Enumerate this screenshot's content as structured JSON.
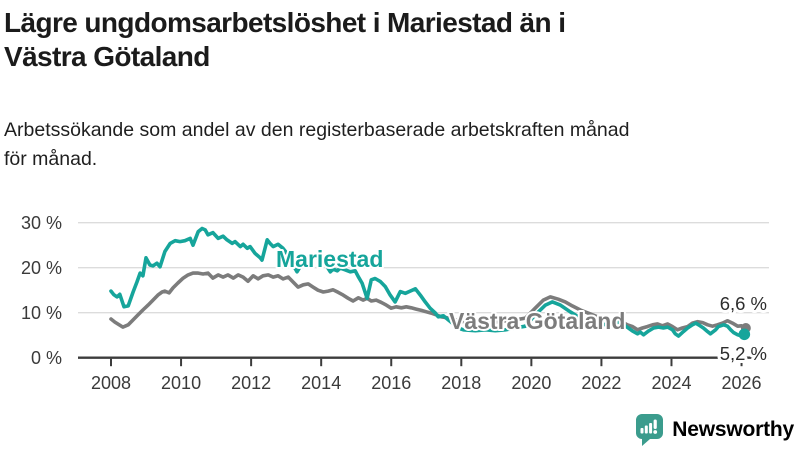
{
  "header": {
    "title_lines": [
      "Lägre ungdomsarbetslöshet i Mariestad än i",
      "Västra Götaland"
    ],
    "subtitle_lines": [
      "Arbetssökande som andel av den registerbaserade arbetskraften månad",
      "för månad."
    ]
  },
  "chart_data": {
    "type": "line",
    "title": "Lägre ungdomsarbetslöshet i Mariestad än i Västra Götaland",
    "subtitle": "Arbetssökande som andel av den registerbaserade arbetskraften månad för månad.",
    "grid": "horizontal",
    "grid_color": "#dcdcdc",
    "axis_color": "#3c3c3c",
    "tick_label_color": "#3a3a3a",
    "x_axis": {
      "ticks": [
        2008,
        2010,
        2012,
        2014,
        2016,
        2018,
        2020,
        2022,
        2024,
        2026
      ],
      "labels": [
        "2008",
        "2010",
        "2012",
        "2014",
        "2016",
        "2018",
        "2020",
        "2022",
        "2024",
        "2026"
      ],
      "range": [
        2007.1,
        2026.8
      ]
    },
    "y_axis": {
      "unit": "%",
      "range": [
        0,
        32
      ],
      "ticks": [
        {
          "value": 0,
          "label": "0 %"
        },
        {
          "value": 10,
          "label": "10 %"
        },
        {
          "value": 20,
          "label": "20 %"
        },
        {
          "value": 30,
          "label": "30 %"
        }
      ]
    },
    "series": [
      {
        "name": "Mariestad",
        "color": "#16a59b",
        "end_label": "5,2 %",
        "end_value": 5.2,
        "points": [
          [
            2008.0,
            14.8
          ],
          [
            2008.08,
            14.0
          ],
          [
            2008.17,
            13.5
          ],
          [
            2008.25,
            14.1
          ],
          [
            2008.37,
            11.3
          ],
          [
            2008.49,
            11.5
          ],
          [
            2008.63,
            14.6
          ],
          [
            2008.74,
            16.8
          ],
          [
            2008.83,
            18.8
          ],
          [
            2008.91,
            18.2
          ],
          [
            2009.0,
            22.2
          ],
          [
            2009.11,
            20.6
          ],
          [
            2009.2,
            20.4
          ],
          [
            2009.31,
            21.0
          ],
          [
            2009.4,
            20.2
          ],
          [
            2009.54,
            23.6
          ],
          [
            2009.69,
            25.4
          ],
          [
            2009.83,
            26.0
          ],
          [
            2009.97,
            25.8
          ],
          [
            2010.11,
            26.0
          ],
          [
            2010.26,
            26.5
          ],
          [
            2010.34,
            25.0
          ],
          [
            2010.49,
            28.0
          ],
          [
            2010.6,
            28.7
          ],
          [
            2010.69,
            28.4
          ],
          [
            2010.77,
            27.3
          ],
          [
            2010.91,
            27.8
          ],
          [
            2011.06,
            26.5
          ],
          [
            2011.2,
            27.0
          ],
          [
            2011.31,
            26.2
          ],
          [
            2011.46,
            25.4
          ],
          [
            2011.54,
            25.8
          ],
          [
            2011.69,
            24.7
          ],
          [
            2011.77,
            25.2
          ],
          [
            2011.89,
            24.3
          ],
          [
            2011.97,
            24.7
          ],
          [
            2012.11,
            23.2
          ],
          [
            2012.26,
            22.2
          ],
          [
            2012.31,
            21.7
          ],
          [
            2012.46,
            26.2
          ],
          [
            2012.54,
            25.4
          ],
          [
            2012.63,
            24.7
          ],
          [
            2012.77,
            25.2
          ],
          [
            2012.91,
            24.3
          ],
          [
            2013.06,
            22.8
          ],
          [
            2013.2,
            20.6
          ],
          [
            2013.31,
            19.1
          ],
          [
            2013.46,
            21.0
          ],
          [
            2013.6,
            22.2
          ],
          [
            2013.74,
            22.8
          ],
          [
            2013.89,
            22.2
          ],
          [
            2014.03,
            21.3
          ],
          [
            2014.17,
            20.2
          ],
          [
            2014.26,
            19.1
          ],
          [
            2014.34,
            19.7
          ],
          [
            2014.46,
            19.3
          ],
          [
            2014.54,
            19.9
          ],
          [
            2014.69,
            19.5
          ],
          [
            2014.83,
            19.1
          ],
          [
            2014.97,
            19.3
          ],
          [
            2015.06,
            18.0
          ],
          [
            2015.17,
            16.5
          ],
          [
            2015.31,
            13.2
          ],
          [
            2015.43,
            17.3
          ],
          [
            2015.54,
            17.6
          ],
          [
            2015.69,
            16.9
          ],
          [
            2015.83,
            15.8
          ],
          [
            2015.97,
            13.9
          ],
          [
            2016.11,
            12.4
          ],
          [
            2016.26,
            14.7
          ],
          [
            2016.4,
            14.3
          ],
          [
            2016.54,
            14.8
          ],
          [
            2016.69,
            15.3
          ],
          [
            2016.83,
            13.9
          ],
          [
            2016.97,
            12.4
          ],
          [
            2017.11,
            11.0
          ],
          [
            2017.26,
            9.9
          ],
          [
            2017.34,
            9.1
          ],
          [
            2017.49,
            9.3
          ],
          [
            2017.63,
            8.4
          ],
          [
            2017.77,
            7.5
          ],
          [
            2017.91,
            6.6
          ],
          [
            2018.06,
            6.2
          ],
          [
            2018.4,
            6.0
          ],
          [
            2018.69,
            6.2
          ],
          [
            2018.97,
            6.0
          ],
          [
            2019.26,
            6.2
          ],
          [
            2019.54,
            6.6
          ],
          [
            2019.83,
            7.0
          ],
          [
            2020.11,
            9.5
          ],
          [
            2020.4,
            11.7
          ],
          [
            2020.6,
            12.4
          ],
          [
            2020.83,
            11.7
          ],
          [
            2021.11,
            10.2
          ],
          [
            2021.4,
            8.8
          ],
          [
            2021.69,
            7.9
          ],
          [
            2021.97,
            7.3
          ],
          [
            2022.26,
            7.5
          ],
          [
            2022.49,
            7.9
          ],
          [
            2022.63,
            7.3
          ],
          [
            2022.77,
            6.6
          ],
          [
            2022.89,
            5.9
          ],
          [
            2023.03,
            5.3
          ],
          [
            2023.11,
            5.7
          ],
          [
            2023.2,
            5.1
          ],
          [
            2023.34,
            5.9
          ],
          [
            2023.49,
            6.6
          ],
          [
            2023.63,
            6.8
          ],
          [
            2023.77,
            6.6
          ],
          [
            2023.89,
            6.8
          ],
          [
            2024.03,
            6.2
          ],
          [
            2024.11,
            5.3
          ],
          [
            2024.2,
            4.8
          ],
          [
            2024.34,
            5.8
          ],
          [
            2024.46,
            6.6
          ],
          [
            2024.6,
            7.3
          ],
          [
            2024.69,
            7.7
          ],
          [
            2024.77,
            7.3
          ],
          [
            2024.91,
            6.6
          ],
          [
            2025.03,
            5.8
          ],
          [
            2025.11,
            5.3
          ],
          [
            2025.26,
            6.2
          ],
          [
            2025.34,
            6.9
          ],
          [
            2025.49,
            7.3
          ],
          [
            2025.6,
            7.0
          ],
          [
            2025.69,
            6.2
          ],
          [
            2025.77,
            5.6
          ],
          [
            2025.89,
            5.1
          ],
          [
            2025.97,
            4.9
          ],
          [
            2026.08,
            5.2
          ]
        ]
      },
      {
        "name": "Västra Götaland",
        "color": "#7c7c7c",
        "end_label": "6,6 %",
        "end_value": 6.6,
        "points": [
          [
            2008.0,
            8.6
          ],
          [
            2008.11,
            7.9
          ],
          [
            2008.34,
            6.8
          ],
          [
            2008.49,
            7.3
          ],
          [
            2008.63,
            8.4
          ],
          [
            2008.77,
            9.5
          ],
          [
            2008.91,
            10.6
          ],
          [
            2009.06,
            11.7
          ],
          [
            2009.2,
            12.8
          ],
          [
            2009.34,
            13.9
          ],
          [
            2009.46,
            14.6
          ],
          [
            2009.54,
            14.8
          ],
          [
            2009.66,
            14.4
          ],
          [
            2009.77,
            15.5
          ],
          [
            2009.91,
            16.6
          ],
          [
            2010.06,
            17.7
          ],
          [
            2010.2,
            18.4
          ],
          [
            2010.34,
            18.8
          ],
          [
            2010.49,
            18.8
          ],
          [
            2010.63,
            18.6
          ],
          [
            2010.77,
            18.8
          ],
          [
            2010.91,
            17.7
          ],
          [
            2011.06,
            18.4
          ],
          [
            2011.2,
            17.9
          ],
          [
            2011.34,
            18.4
          ],
          [
            2011.49,
            17.7
          ],
          [
            2011.63,
            18.4
          ],
          [
            2011.77,
            17.9
          ],
          [
            2011.91,
            17.0
          ],
          [
            2012.06,
            18.2
          ],
          [
            2012.2,
            17.5
          ],
          [
            2012.34,
            18.2
          ],
          [
            2012.49,
            18.4
          ],
          [
            2012.63,
            17.9
          ],
          [
            2012.77,
            18.2
          ],
          [
            2012.91,
            17.5
          ],
          [
            2013.06,
            17.9
          ],
          [
            2013.2,
            16.8
          ],
          [
            2013.34,
            15.7
          ],
          [
            2013.49,
            16.2
          ],
          [
            2013.63,
            16.4
          ],
          [
            2013.77,
            15.7
          ],
          [
            2013.91,
            15.0
          ],
          [
            2014.06,
            14.6
          ],
          [
            2014.2,
            14.8
          ],
          [
            2014.34,
            15.1
          ],
          [
            2014.49,
            14.5
          ],
          [
            2014.63,
            13.9
          ],
          [
            2014.77,
            13.2
          ],
          [
            2014.91,
            12.6
          ],
          [
            2015.06,
            13.3
          ],
          [
            2015.2,
            12.8
          ],
          [
            2015.31,
            13.2
          ],
          [
            2015.43,
            12.6
          ],
          [
            2015.57,
            12.8
          ],
          [
            2015.71,
            12.3
          ],
          [
            2015.86,
            11.7
          ],
          [
            2016.0,
            11.0
          ],
          [
            2016.14,
            11.3
          ],
          [
            2016.29,
            11.1
          ],
          [
            2016.43,
            11.3
          ],
          [
            2016.57,
            11.1
          ],
          [
            2016.71,
            10.8
          ],
          [
            2016.86,
            10.5
          ],
          [
            2017.0,
            10.2
          ],
          [
            2017.14,
            9.9
          ],
          [
            2017.29,
            9.5
          ],
          [
            2017.43,
            9.1
          ],
          [
            2017.57,
            8.9
          ],
          [
            2017.71,
            8.6
          ],
          [
            2017.86,
            8.4
          ],
          [
            2018.11,
            7.9
          ],
          [
            2018.4,
            8.2
          ],
          [
            2018.69,
            7.7
          ],
          [
            2018.97,
            7.9
          ],
          [
            2019.26,
            8.2
          ],
          [
            2019.54,
            8.4
          ],
          [
            2019.83,
            8.8
          ],
          [
            2020.11,
            11.0
          ],
          [
            2020.34,
            12.8
          ],
          [
            2020.54,
            13.5
          ],
          [
            2020.77,
            13.0
          ],
          [
            2020.97,
            12.4
          ],
          [
            2021.17,
            11.5
          ],
          [
            2021.4,
            10.6
          ],
          [
            2021.69,
            9.7
          ],
          [
            2021.97,
            8.8
          ],
          [
            2022.2,
            8.4
          ],
          [
            2022.4,
            8.4
          ],
          [
            2022.6,
            7.9
          ],
          [
            2022.74,
            7.3
          ],
          [
            2022.89,
            6.9
          ],
          [
            2023.03,
            6.2
          ],
          [
            2023.17,
            6.6
          ],
          [
            2023.31,
            6.9
          ],
          [
            2023.46,
            7.3
          ],
          [
            2023.6,
            7.5
          ],
          [
            2023.74,
            7.1
          ],
          [
            2023.89,
            7.5
          ],
          [
            2024.03,
            6.9
          ],
          [
            2024.17,
            6.2
          ],
          [
            2024.31,
            6.6
          ],
          [
            2024.46,
            6.9
          ],
          [
            2024.6,
            7.7
          ],
          [
            2024.74,
            8.0
          ],
          [
            2024.89,
            7.8
          ],
          [
            2025.03,
            7.3
          ],
          [
            2025.17,
            7.0
          ],
          [
            2025.31,
            7.3
          ],
          [
            2025.46,
            7.7
          ],
          [
            2025.6,
            8.2
          ],
          [
            2025.74,
            7.7
          ],
          [
            2025.89,
            7.0
          ],
          [
            2026.0,
            7.1
          ],
          [
            2026.08,
            6.6
          ]
        ]
      }
    ],
    "legend_position": "inline-labels"
  },
  "footer": {
    "brand": "Newsworthy",
    "brand_color": "#3f9e8f"
  }
}
